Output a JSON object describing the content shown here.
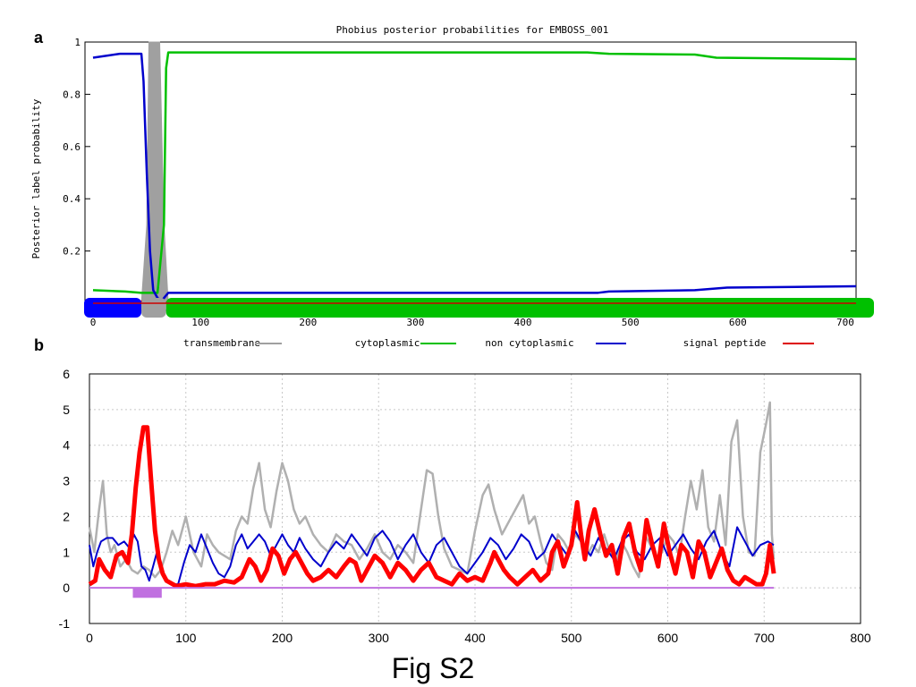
{
  "panel_a_label": "a",
  "panel_b_label": "b",
  "caption": "Fig S2",
  "chart_data": [
    {
      "type": "line",
      "title": "Phobius posterior probabilities for EMBOSS_001",
      "xlabel": "",
      "ylabel": "Posterior label probability",
      "xlim": [
        0,
        710
      ],
      "ylim": [
        0,
        1
      ],
      "x_ticks": [
        0,
        100,
        200,
        300,
        400,
        500,
        600,
        700
      ],
      "y_ticks": [
        0.2,
        0.4,
        0.6,
        0.8,
        1
      ],
      "y_tick_labels": [
        "0.2",
        "0.4",
        "0.6",
        "0.8",
        "1"
      ],
      "legend_position": "bottom",
      "series": [
        {
          "name": "transmembrane",
          "color": "#a0a0a0",
          "x": [
            0,
            45,
            50,
            52,
            56,
            62,
            66,
            70,
            710
          ],
          "y": [
            0,
            0,
            0.3,
            1,
            1,
            1,
            0.3,
            0,
            0
          ]
        },
        {
          "name": "cytoplasmic",
          "color": "#00c000",
          "x": [
            0,
            30,
            45,
            60,
            66,
            68,
            70,
            100,
            300,
            460,
            480,
            560,
            580,
            710
          ],
          "y": [
            0.05,
            0.045,
            0.04,
            0.04,
            0.3,
            0.9,
            0.96,
            0.96,
            0.96,
            0.96,
            0.955,
            0.952,
            0.94,
            0.935
          ]
        },
        {
          "name": "non cytoplasmic",
          "color": "#0000cc",
          "x": [
            0,
            25,
            45,
            47,
            50,
            53,
            56,
            60,
            64,
            66,
            70,
            100,
            470,
            480,
            560,
            590,
            710
          ],
          "y": [
            0.94,
            0.955,
            0.955,
            0.85,
            0.5,
            0.2,
            0.05,
            0.02,
            0.01,
            0.02,
            0.04,
            0.04,
            0.04,
            0.045,
            0.05,
            0.06,
            0.065
          ]
        },
        {
          "name": "signal peptide",
          "color": "#dd0000",
          "x": [
            0,
            30,
            50,
            70,
            710
          ],
          "y": [
            0.01,
            0.01,
            0.005,
            0.002,
            0.002
          ]
        }
      ],
      "topology_bar": [
        {
          "label": "non cytoplasmic",
          "start": 0,
          "end": 45,
          "color": "#0000ff"
        },
        {
          "label": "transmembrane",
          "start": 45,
          "end": 68,
          "color": "#a0a0a0"
        },
        {
          "label": "cytoplasmic",
          "start": 68,
          "end": 710,
          "color": "#00c000"
        }
      ]
    },
    {
      "type": "line",
      "title": "",
      "xlabel": "",
      "ylabel": "",
      "xlim": [
        0,
        800
      ],
      "ylim": [
        -1,
        6
      ],
      "x_ticks": [
        0,
        100,
        200,
        300,
        400,
        500,
        600,
        700,
        800
      ],
      "y_ticks": [
        -1,
        0,
        1,
        2,
        3,
        4,
        5,
        6
      ],
      "grid": true,
      "series": [
        {
          "color": "#b0b0b0",
          "width": 2.5,
          "x": [
            0,
            5,
            10,
            14,
            18,
            22,
            26,
            32,
            38,
            44,
            50,
            56,
            62,
            68,
            74,
            80,
            86,
            92,
            100,
            108,
            116,
            122,
            128,
            134,
            140,
            146,
            152,
            158,
            164,
            170,
            176,
            182,
            188,
            194,
            200,
            206,
            212,
            218,
            224,
            232,
            240,
            248,
            256,
            264,
            272,
            280,
            288,
            296,
            304,
            312,
            320,
            328,
            336,
            344,
            350,
            356,
            362,
            368,
            376,
            384,
            392,
            400,
            408,
            414,
            420,
            428,
            436,
            444,
            450,
            456,
            462,
            468,
            474,
            480,
            486,
            492,
            498,
            504,
            510,
            516,
            522,
            528,
            534,
            540,
            546,
            552,
            558,
            564,
            570,
            576,
            582,
            588,
            594,
            600,
            606,
            612,
            618,
            624,
            630,
            636,
            642,
            648,
            654,
            660,
            666,
            672,
            678,
            684,
            690,
            696,
            702,
            706,
            708,
            710
          ],
          "y": [
            1.7,
            1.0,
            2.2,
            3.0,
            1.5,
            1.0,
            1.2,
            0.6,
            0.8,
            0.5,
            0.4,
            0.6,
            0.5,
            0.3,
            0.5,
            1.0,
            1.6,
            1.2,
            2.0,
            1.0,
            0.6,
            1.5,
            1.2,
            1.0,
            0.9,
            0.8,
            1.6,
            2.0,
            1.8,
            2.8,
            3.5,
            2.2,
            1.7,
            2.7,
            3.5,
            3.0,
            2.2,
            1.8,
            2.0,
            1.5,
            1.2,
            1.0,
            1.5,
            1.3,
            1.2,
            0.8,
            1.1,
            1.5,
            1.0,
            0.8,
            1.2,
            1.0,
            0.7,
            2.2,
            3.3,
            3.2,
            2.0,
            1.1,
            0.6,
            0.5,
            0.4,
            1.6,
            2.6,
            2.9,
            2.2,
            1.5,
            1.9,
            2.3,
            2.6,
            1.8,
            2.0,
            1.3,
            0.7,
            0.5,
            1.5,
            1.3,
            1.0,
            1.5,
            1.3,
            0.9,
            1.2,
            1.0,
            1.5,
            1.0,
            0.7,
            1.3,
            1.0,
            0.6,
            0.3,
            1.5,
            1.2,
            0.8,
            1.0,
            1.5,
            1.3,
            0.9,
            2.0,
            3.0,
            2.2,
            3.3,
            1.7,
            1.3,
            2.6,
            1.2,
            4.1,
            4.7,
            2.0,
            1.0,
            0.9,
            3.8,
            4.6,
            5.2,
            1.5,
            0.8
          ]
        },
        {
          "color": "#0000cc",
          "width": 2,
          "x": [
            0,
            4,
            8,
            12,
            18,
            24,
            30,
            36,
            42,
            46,
            50,
            54,
            58,
            62,
            66,
            70,
            74,
            78,
            82,
            86,
            92,
            98,
            104,
            110,
            116,
            122,
            128,
            134,
            140,
            146,
            152,
            158,
            164,
            170,
            176,
            182,
            188,
            194,
            200,
            206,
            212,
            218,
            224,
            232,
            240,
            248,
            256,
            264,
            272,
            280,
            288,
            296,
            304,
            312,
            320,
            328,
            336,
            344,
            352,
            360,
            368,
            376,
            384,
            392,
            400,
            408,
            416,
            424,
            432,
            440,
            448,
            456,
            464,
            472,
            480,
            488,
            496,
            504,
            512,
            520,
            528,
            536,
            544,
            552,
            560,
            568,
            576,
            584,
            592,
            600,
            608,
            616,
            624,
            632,
            640,
            648,
            656,
            664,
            672,
            680,
            688,
            696,
            704,
            710
          ],
          "y": [
            1.2,
            0.6,
            1.0,
            1.3,
            1.4,
            1.4,
            1.2,
            1.3,
            1.1,
            1.5,
            1.3,
            0.6,
            0.5,
            0.2,
            0.6,
            1.0,
            0.6,
            0.3,
            0.2,
            0.1,
            0.1,
            0.7,
            1.2,
            1.0,
            1.5,
            1.1,
            0.7,
            0.4,
            0.3,
            0.6,
            1.2,
            1.5,
            1.1,
            1.3,
            1.5,
            1.3,
            0.9,
            1.2,
            1.5,
            1.2,
            1.0,
            1.4,
            1.1,
            0.8,
            0.6,
            1.0,
            1.3,
            1.1,
            1.5,
            1.2,
            0.9,
            1.4,
            1.6,
            1.3,
            0.8,
            1.2,
            1.5,
            1.0,
            0.7,
            1.2,
            1.4,
            1.0,
            0.6,
            0.4,
            0.7,
            1.0,
            1.4,
            1.2,
            0.8,
            1.1,
            1.5,
            1.3,
            0.8,
            1.0,
            1.5,
            1.2,
            0.9,
            1.6,
            1.2,
            0.9,
            1.4,
            1.1,
            0.8,
            1.3,
            1.5,
            1.0,
            0.8,
            1.2,
            1.4,
            0.9,
            1.2,
            1.5,
            1.1,
            0.8,
            1.3,
            1.6,
            1.0,
            0.6,
            1.7,
            1.3,
            0.9,
            1.2,
            1.3,
            1.2
          ]
        },
        {
          "color": "#ff0000",
          "width": 5,
          "x": [
            0,
            6,
            10,
            16,
            22,
            28,
            34,
            40,
            44,
            48,
            52,
            56,
            60,
            64,
            68,
            72,
            76,
            80,
            90,
            100,
            110,
            120,
            130,
            140,
            150,
            158,
            166,
            172,
            178,
            184,
            190,
            196,
            202,
            208,
            214,
            220,
            226,
            232,
            240,
            248,
            256,
            264,
            270,
            276,
            282,
            288,
            296,
            304,
            312,
            320,
            328,
            336,
            344,
            352,
            360,
            368,
            376,
            384,
            392,
            400,
            408,
            416,
            420,
            424,
            430,
            436,
            444,
            452,
            460,
            468,
            476,
            480,
            486,
            492,
            500,
            506,
            510,
            514,
            518,
            524,
            530,
            536,
            542,
            548,
            554,
            560,
            566,
            572,
            578,
            584,
            590,
            596,
            602,
            608,
            614,
            620,
            626,
            632,
            638,
            644,
            650,
            656,
            662,
            668,
            674,
            680,
            686,
            692,
            698,
            702,
            706,
            708,
            710
          ],
          "y": [
            0.1,
            0.2,
            0.8,
            0.5,
            0.3,
            0.9,
            1.0,
            0.7,
            1.5,
            2.8,
            3.8,
            4.5,
            4.5,
            3.0,
            1.6,
            0.8,
            0.4,
            0.2,
            0.05,
            0.1,
            0.05,
            0.1,
            0.1,
            0.2,
            0.15,
            0.3,
            0.8,
            0.6,
            0.2,
            0.5,
            1.1,
            0.9,
            0.4,
            0.8,
            1.0,
            0.7,
            0.4,
            0.2,
            0.3,
            0.5,
            0.3,
            0.6,
            0.8,
            0.7,
            0.2,
            0.5,
            0.9,
            0.7,
            0.3,
            0.7,
            0.5,
            0.2,
            0.5,
            0.7,
            0.3,
            0.2,
            0.1,
            0.4,
            0.2,
            0.3,
            0.2,
            0.7,
            1.0,
            0.8,
            0.5,
            0.3,
            0.1,
            0.3,
            0.5,
            0.2,
            0.4,
            1.0,
            1.3,
            0.6,
            1.2,
            2.4,
            1.5,
            0.8,
            1.6,
            2.2,
            1.5,
            0.9,
            1.2,
            0.4,
            1.4,
            1.8,
            1.0,
            0.5,
            1.9,
            1.2,
            0.6,
            1.8,
            1.0,
            0.4,
            1.2,
            1.0,
            0.3,
            1.3,
            1.0,
            0.3,
            0.7,
            1.1,
            0.5,
            0.2,
            0.1,
            0.3,
            0.2,
            0.1,
            0.1,
            0.4,
            1.2,
            0.8,
            0.4
          ]
        },
        {
          "color": "#c070e0",
          "width": 2,
          "x": [
            0,
            710
          ],
          "y": [
            0,
            0
          ]
        }
      ],
      "highlight_band": {
        "color": "#c070e0",
        "x_start": 45,
        "x_end": 75,
        "y_top": 0,
        "y_bottom": -0.28
      }
    }
  ]
}
